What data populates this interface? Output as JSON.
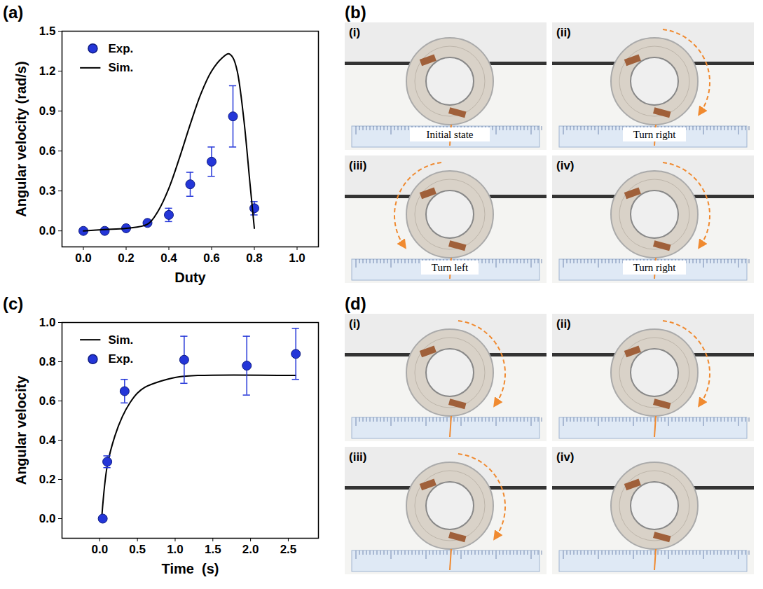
{
  "chart_data": [
    {
      "panel": "(a)",
      "type": "line",
      "xlabel": "Duty",
      "ylabel": "Angular velocity (rad/s)",
      "xlim": [
        -0.1,
        1.1
      ],
      "xticks": [
        {
          "value": 0,
          "label": "0.0"
        },
        0.2,
        0.4,
        0.6,
        0.8,
        {
          "value": 1,
          "label": "1.0"
        }
      ],
      "ylim": [
        -0.12,
        1.5
      ],
      "yticks": [
        {
          "value": 0,
          "label": "0.0"
        },
        0.3,
        0.6,
        0.9,
        1.2,
        1.5
      ],
      "legend": "upper left",
      "series": [
        {
          "name": "Exp.",
          "type": "scatter",
          "marker": "circle",
          "color": "#2436d8",
          "x": [
            0,
            0.1,
            0.2,
            0.3,
            0.4,
            0.5,
            0.6,
            0.7,
            0.8
          ],
          "values": [
            0,
            0,
            0.02,
            0.06,
            0.12,
            0.35,
            0.52,
            0.86,
            0.17
          ],
          "errors": [
            null,
            null,
            null,
            null,
            0.05,
            0.09,
            0.11,
            0.23,
            0.05
          ]
        },
        {
          "name": "Sim.",
          "type": "line",
          "line_style": "solid",
          "color": "#000000",
          "x": [
            0,
            0.1,
            0.2,
            0.3,
            0.35,
            0.4,
            0.45,
            0.5,
            0.55,
            0.6,
            0.65,
            0.68,
            0.7,
            0.72,
            0.75,
            0.78,
            0.8
          ],
          "values": [
            0,
            0.01,
            0.02,
            0.05,
            0.15,
            0.32,
            0.55,
            0.8,
            1.03,
            1.2,
            1.3,
            1.33,
            1.3,
            1.2,
            0.85,
            0.35,
            0.02
          ]
        }
      ]
    },
    {
      "panel": "(c)",
      "type": "line",
      "xlabel": "Time  (s)",
      "ylabel": "Angular velocity",
      "xlim": [
        -0.5,
        2.9
      ],
      "xticks": [
        {
          "value": 0,
          "label": "0.0"
        },
        0.5,
        {
          "value": 1,
          "label": "1.0"
        },
        1.5,
        {
          "value": 2,
          "label": "2.0"
        },
        2.5
      ],
      "ylim": [
        -0.1,
        1.0
      ],
      "yticks": [
        {
          "value": 0,
          "label": "0.0"
        },
        0.2,
        0.4,
        0.6,
        0.8,
        {
          "value": 1,
          "label": "1.0"
        }
      ],
      "legend": "upper left",
      "series": [
        {
          "name": "Sim.",
          "type": "line",
          "line_style": "solid",
          "color": "#000000",
          "x": [
            0.03,
            0.1,
            0.2,
            0.3,
            0.4,
            0.5,
            0.6,
            0.8,
            1.0,
            1.3,
            2.6
          ],
          "values": [
            0.02,
            0.27,
            0.42,
            0.52,
            0.59,
            0.64,
            0.67,
            0.7,
            0.72,
            0.73,
            0.73
          ]
        },
        {
          "name": "Exp.",
          "type": "scatter",
          "marker": "circle",
          "color": "#2436d8",
          "x": [
            0.04,
            0.1,
            0.33,
            1.12,
            1.95,
            2.6
          ],
          "values": [
            0,
            0.29,
            0.65,
            0.81,
            0.78,
            0.84
          ],
          "errors": [
            null,
            0.03,
            0.06,
            0.12,
            0.15,
            0.13
          ]
        }
      ]
    }
  ],
  "photo_panels": [
    {
      "panel": "(b)",
      "frames": [
        {
          "label": "(i)",
          "caption": "Initial state"
        },
        {
          "label": "(ii)",
          "caption": "Turn right"
        },
        {
          "label": "(iii)",
          "caption": "Turn left"
        },
        {
          "label": "(iv)",
          "caption": "Turn right"
        }
      ]
    },
    {
      "panel": "(d)",
      "frames": [
        {
          "label": "(i)"
        },
        {
          "label": "(ii)"
        },
        {
          "label": "(iii)"
        },
        {
          "label": "(iv)"
        }
      ]
    }
  ]
}
